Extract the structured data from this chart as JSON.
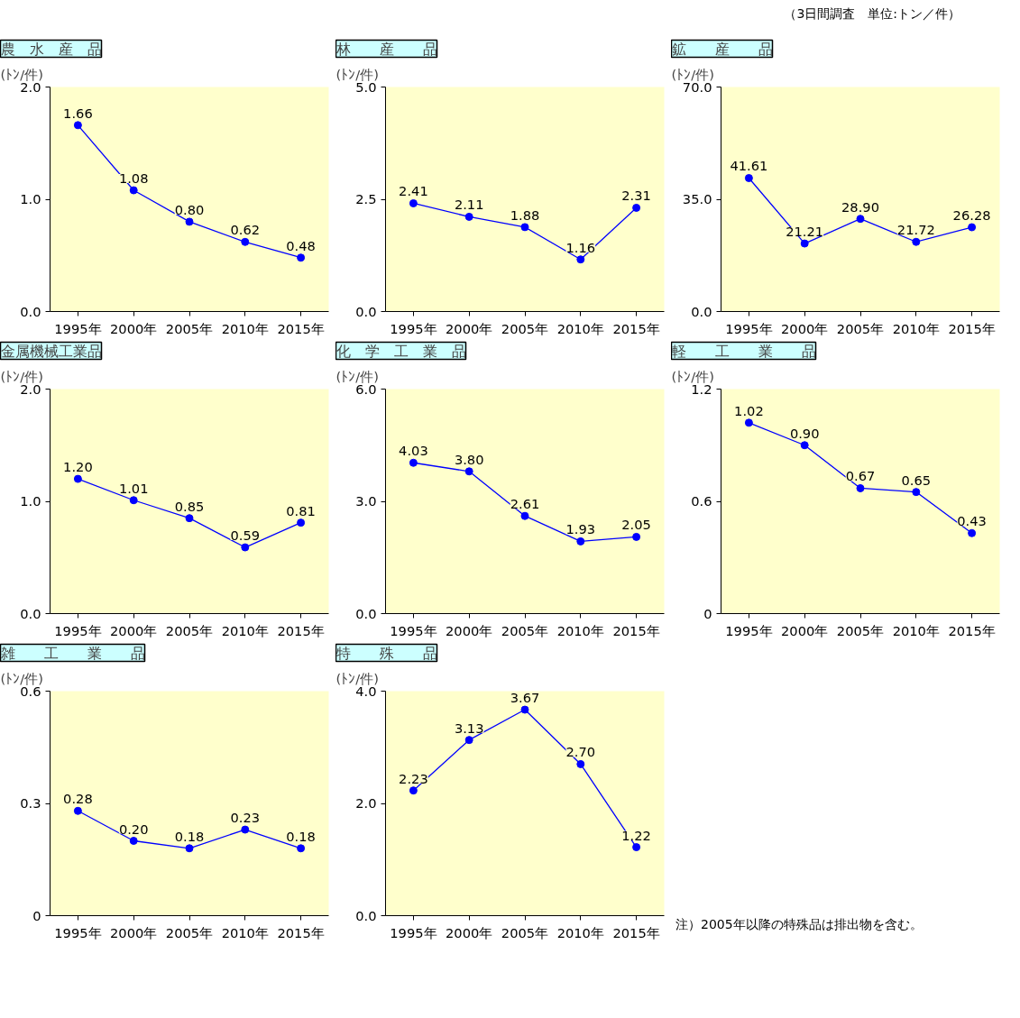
{
  "chart_data": [
    {
      "type": "line",
      "title": "農　水　産　品",
      "ylabel": "(ﾄﾝ/件)",
      "annotations": [
        "（3日間調査　単位:トン／件）"
      ],
      "categories": [
        "1995年",
        "2000年",
        "2005年",
        "2010年",
        "2015年"
      ],
      "color": "#0000ff",
      "values": [
        1.66,
        1.08,
        0.8,
        0.62,
        0.48
      ],
      "value_labels": [
        "1.66",
        "1.08",
        "0.80",
        "0.62",
        "0.48"
      ],
      "ylim": [
        0,
        2
      ],
      "yticks": [
        {
          "value": 0,
          "label": "0.0"
        },
        {
          "value": 1,
          "label": "1.0"
        },
        {
          "value": 2,
          "label": "2.0"
        }
      ],
      "marker": "circle",
      "grid": false,
      "legend": false
    },
    {
      "type": "line",
      "title": "林　　産　　品",
      "ylabel": "(ﾄﾝ/件)",
      "categories": [
        "1995年",
        "2000年",
        "2005年",
        "2010年",
        "2015年"
      ],
      "color": "#0000ff",
      "values": [
        2.41,
        2.11,
        1.88,
        1.16,
        2.31
      ],
      "value_labels": [
        "2.41",
        "2.11",
        "1.88",
        "1.16",
        "2.31"
      ],
      "ylim": [
        0,
        5
      ],
      "yticks": [
        {
          "value": 0,
          "label": "0.0"
        },
        2.5,
        {
          "value": 5,
          "label": "5.0"
        }
      ],
      "marker": "circle",
      "grid": false,
      "legend": false
    },
    {
      "type": "line",
      "title": "鉱　　産　　品",
      "ylabel": "(ﾄﾝ/件)",
      "categories": [
        "1995年",
        "2000年",
        "2005年",
        "2010年",
        "2015年"
      ],
      "color": "#0000ff",
      "values": [
        41.61,
        21.21,
        28.9,
        21.72,
        26.28
      ],
      "value_labels": [
        "41.61",
        "21.21",
        "28.90",
        "21.72",
        "26.28"
      ],
      "ylim": [
        0,
        70
      ],
      "yticks": [
        {
          "value": 0,
          "label": "0.0"
        },
        {
          "value": 35,
          "label": "35.0"
        },
        {
          "value": 70,
          "label": "70.0"
        }
      ],
      "marker": "circle",
      "grid": false,
      "legend": false
    },
    {
      "type": "line",
      "title": "金属機械工業品",
      "ylabel": "(ﾄﾝ/件)",
      "categories": [
        "1995年",
        "2000年",
        "2005年",
        "2010年",
        "2015年"
      ],
      "color": "#0000ff",
      "values": [
        1.2,
        1.01,
        0.85,
        0.59,
        0.81
      ],
      "value_labels": [
        "1.20",
        "1.01",
        "0.85",
        "0.59",
        "0.81"
      ],
      "ylim": [
        0,
        2
      ],
      "yticks": [
        {
          "value": 0,
          "label": "0.0"
        },
        {
          "value": 1,
          "label": "1.0"
        },
        {
          "value": 2,
          "label": "2.0"
        }
      ],
      "marker": "circle",
      "grid": false,
      "legend": false
    },
    {
      "type": "line",
      "title": "化　学　工　業　品",
      "ylabel": "(ﾄﾝ/件)",
      "categories": [
        "1995年",
        "2000年",
        "2005年",
        "2010年",
        "2015年"
      ],
      "color": "#0000ff",
      "values": [
        4.03,
        3.8,
        2.61,
        1.93,
        2.05
      ],
      "value_labels": [
        "4.03",
        "3.80",
        "2.61",
        "1.93",
        "2.05"
      ],
      "ylim": [
        0,
        6
      ],
      "yticks": [
        {
          "value": 0,
          "label": "0.0"
        },
        {
          "value": 3,
          "label": "3.0"
        },
        {
          "value": 6,
          "label": "6.0"
        }
      ],
      "marker": "circle",
      "grid": false,
      "legend": false
    },
    {
      "type": "line",
      "title": "軽　　工　　業　　品",
      "ylabel": "(ﾄﾝ/件)",
      "categories": [
        "1995年",
        "2000年",
        "2005年",
        "2010年",
        "2015年"
      ],
      "color": "#0000ff",
      "values": [
        1.02,
        0.9,
        0.67,
        0.65,
        0.43
      ],
      "value_labels": [
        "1.02",
        "0.90",
        "0.67",
        "0.65",
        "0.43"
      ],
      "ylim": [
        0,
        1.2
      ],
      "yticks": [
        0,
        0.6,
        1.2
      ],
      "marker": "circle",
      "grid": false,
      "legend": false
    },
    {
      "type": "line",
      "title": "雑　　工　　業　　品",
      "ylabel": "(ﾄﾝ/件)",
      "categories": [
        "1995年",
        "2000年",
        "2005年",
        "2010年",
        "2015年"
      ],
      "color": "#0000ff",
      "values": [
        0.28,
        0.2,
        0.18,
        0.23,
        0.18
      ],
      "value_labels": [
        "0.28",
        "0.20",
        "0.18",
        "0.23",
        "0.18"
      ],
      "ylim": [
        0,
        0.6
      ],
      "yticks": [
        0,
        0.3,
        0.6
      ],
      "marker": "circle",
      "grid": false,
      "legend": false
    },
    {
      "type": "line",
      "title": "特　　殊　　品",
      "ylabel": "(ﾄﾝ/件)",
      "annotations": [
        "注）2005年以降の特殊品は排出物を含む。"
      ],
      "categories": [
        "1995年",
        "2000年",
        "2005年",
        "2010年",
        "2015年"
      ],
      "color": "#0000ff",
      "values": [
        2.23,
        3.13,
        3.67,
        2.7,
        1.22
      ],
      "value_labels": [
        "2.23",
        "3.13",
        "3.67",
        "2.70",
        "1.22"
      ],
      "ylim": [
        0,
        4
      ],
      "yticks": [
        {
          "value": 0,
          "label": "0.0"
        },
        {
          "value": 2,
          "label": "2.0"
        },
        {
          "value": 4,
          "label": "4.0"
        }
      ],
      "marker": "circle",
      "grid": false,
      "legend": false
    }
  ]
}
